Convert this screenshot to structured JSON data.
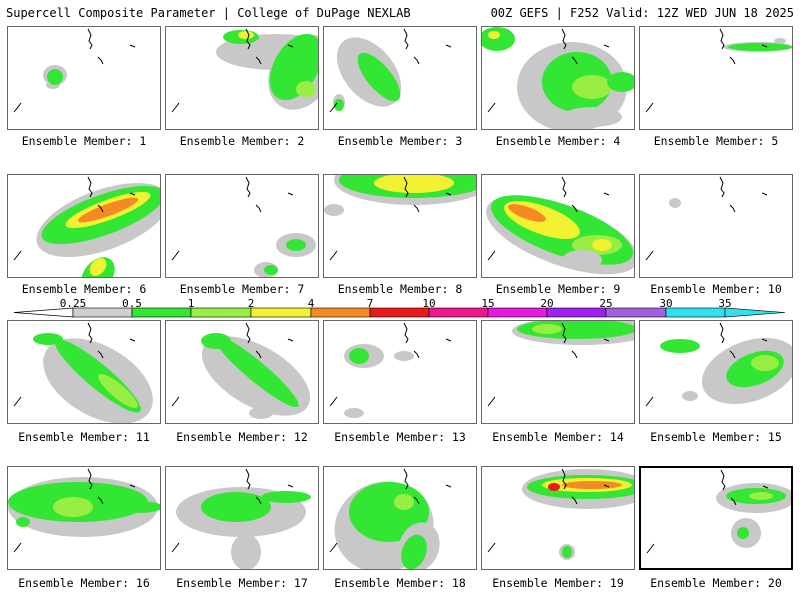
{
  "header": {
    "left": "Supercell Composite Parameter | College of DuPage NEXLAB",
    "right": "00Z GEFS | F252 Valid: 12Z WED JUN 18 2025"
  },
  "panels": [
    {
      "label": "Ensemble Member: 1"
    },
    {
      "label": "Ensemble Member: 2"
    },
    {
      "label": "Ensemble Member: 3"
    },
    {
      "label": "Ensemble Member: 4"
    },
    {
      "label": "Ensemble Member: 5"
    },
    {
      "label": "Ensemble Member: 6"
    },
    {
      "label": "Ensemble Member: 7"
    },
    {
      "label": "Ensemble Member: 8"
    },
    {
      "label": "Ensemble Member: 9"
    },
    {
      "label": "Ensemble Member: 10"
    },
    {
      "label": "Ensemble Member: 11"
    },
    {
      "label": "Ensemble Member: 12"
    },
    {
      "label": "Ensemble Member: 13"
    },
    {
      "label": "Ensemble Member: 14"
    },
    {
      "label": "Ensemble Member: 15"
    },
    {
      "label": "Ensemble Member: 16"
    },
    {
      "label": "Ensemble Member: 17"
    },
    {
      "label": "Ensemble Member: 18"
    },
    {
      "label": "Ensemble Member: 19"
    },
    {
      "label": "Ensemble Member: 20"
    }
  ],
  "legend": {
    "labels": [
      "0.25",
      "0.5",
      "1",
      "2",
      "4",
      "7",
      "10",
      "15",
      "20",
      "25",
      "30",
      "35"
    ],
    "colors": [
      "#cfcfcf",
      "#33e633",
      "#99ee44",
      "#f2f233",
      "#f58a22",
      "#e81a1a",
      "#f01890",
      "#e81ae0",
      "#a020f0",
      "#a060e0",
      "#30e0f0"
    ]
  },
  "colors": {
    "gray": "#c8c8c8",
    "green": "#33e633",
    "lightgreen": "#99ee44",
    "yellow": "#f2f233",
    "orange": "#f58a22",
    "red": "#e81a1a"
  }
}
